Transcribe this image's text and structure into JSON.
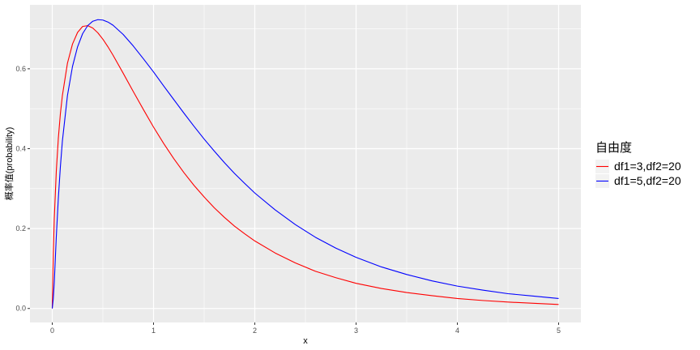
{
  "chart_data": {
    "type": "line",
    "title": "",
    "xlabel": "x",
    "ylabel": "概率值(probability)",
    "xlim": [
      -0.22,
      5.22
    ],
    "ylim": [
      -0.035,
      0.76
    ],
    "x_ticks": [
      0,
      1,
      2,
      3,
      4,
      5
    ],
    "x_tick_labels": [
      "0",
      "1",
      "2",
      "3",
      "4",
      "5"
    ],
    "y_ticks": [
      0.0,
      0.2,
      0.4,
      0.6
    ],
    "y_tick_labels": [
      "0.0",
      "0.2",
      "0.4",
      "0.6"
    ],
    "grid": true,
    "legend": {
      "title": "自由度",
      "position": "right"
    },
    "x": [
      0,
      0.01,
      0.02,
      0.04,
      0.06,
      0.08,
      0.1,
      0.15,
      0.2,
      0.25,
      0.3,
      0.35,
      0.4,
      0.45,
      0.5,
      0.55,
      0.6,
      0.7,
      0.8,
      0.9,
      1.0,
      1.1,
      1.2,
      1.3,
      1.4,
      1.5,
      1.6,
      1.7,
      1.8,
      1.9,
      2.0,
      2.2,
      2.4,
      2.6,
      2.8,
      3.0,
      3.25,
      3.5,
      3.75,
      4.0,
      4.25,
      4.5,
      4.75,
      5.0
    ],
    "series": [
      {
        "name": "df1=3,df2=20",
        "color": "#ff0000",
        "values": [
          0,
          0.135,
          0.225,
          0.344,
          0.426,
          0.487,
          0.533,
          0.614,
          0.662,
          0.691,
          0.706,
          0.708,
          0.702,
          0.69,
          0.674,
          0.655,
          0.634,
          0.589,
          0.543,
          0.498,
          0.454,
          0.413,
          0.375,
          0.34,
          0.308,
          0.279,
          0.252,
          0.228,
          0.206,
          0.187,
          0.169,
          0.139,
          0.114,
          0.093,
          0.077,
          0.063,
          0.05,
          0.04,
          0.032,
          0.025,
          0.02,
          0.016,
          0.013,
          0.01
        ]
      },
      {
        "name": "df1=5,df2=20",
        "color": "#0000ff",
        "values": [
          0,
          0.024,
          0.066,
          0.18,
          0.276,
          0.354,
          0.419,
          0.533,
          0.606,
          0.655,
          0.688,
          0.708,
          0.719,
          0.723,
          0.722,
          0.717,
          0.709,
          0.686,
          0.657,
          0.625,
          0.592,
          0.557,
          0.523,
          0.489,
          0.456,
          0.424,
          0.394,
          0.365,
          0.338,
          0.313,
          0.289,
          0.247,
          0.21,
          0.178,
          0.151,
          0.128,
          0.104,
          0.085,
          0.069,
          0.056,
          0.046,
          0.037,
          0.031,
          0.025
        ]
      }
    ]
  }
}
